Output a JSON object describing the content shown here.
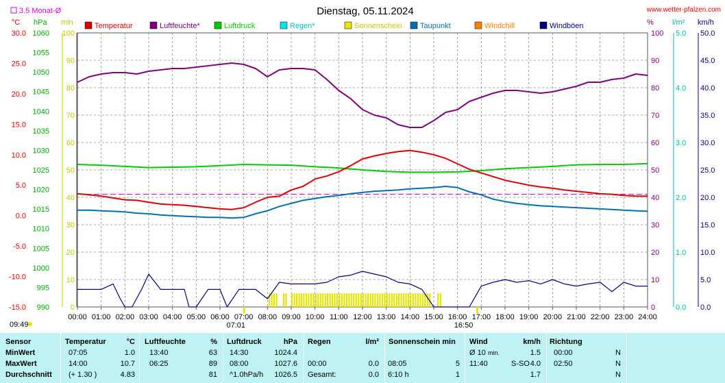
{
  "title": "Dienstag, 05.11.2024",
  "site": "www.wetter-pfalzen.com",
  "monthly_avg_label": "3.5 Monat-Ø",
  "sunrise": "07:01",
  "sunset": "16:50",
  "time_left": "09:49",
  "axes": {
    "temp_unit": "°C",
    "pres_unit": "hPa",
    "sun_unit": "min",
    "hum_unit": "%",
    "rain_unit": "l/m²",
    "wind_unit": "km/h",
    "temp_ticks": [
      "30.0",
      "25.0",
      "20.0",
      "15.0",
      "10.0",
      "5.0",
      "0.0",
      "-5.0",
      "-10.0",
      "-15.0"
    ],
    "pres_ticks": [
      "1060",
      "1055",
      "1050",
      "1045",
      "1040",
      "1035",
      "1030",
      "1025",
      "1020",
      "1015",
      "1010",
      "1005",
      "1000",
      "995",
      "990"
    ],
    "sun_ticks": [
      "100",
      "90",
      "80",
      "70",
      "60",
      "50",
      "40",
      "30",
      "20",
      "10",
      "0"
    ],
    "hum_ticks": [
      "100",
      "90",
      "80",
      "70",
      "60",
      "50",
      "40",
      "30",
      "20",
      "10",
      "0"
    ],
    "rain_ticks": [
      "5.0",
      "4.0",
      "3.0",
      "2.0",
      "1.0",
      "0.0"
    ],
    "wind_ticks": [
      "50.0",
      "45.0",
      "40.0",
      "35.0",
      "30.0",
      "25.0",
      "20.0",
      "15.0",
      "10.0",
      "5.0",
      "0.0"
    ],
    "x_ticks": [
      "00:00",
      "01:00",
      "02:00",
      "03:00",
      "04:00",
      "05:00",
      "06:00",
      "07:00",
      "08:00",
      "09:00",
      "10:00",
      "11:00",
      "12:00",
      "13:00",
      "14:00",
      "15:00",
      "16:00",
      "17:00",
      "18:00",
      "19:00",
      "20:00",
      "21:00",
      "22:00",
      "23:00",
      "24:00"
    ]
  },
  "legend": [
    {
      "label": "Temperatur",
      "color": "#e00000"
    },
    {
      "label": "Luftfeuchte*",
      "color": "#800080"
    },
    {
      "label": "Luftdruck",
      "color": "#00cc00"
    },
    {
      "label": "Regen*",
      "color": "#00e5e5"
    },
    {
      "label": "Sonnenschein",
      "color": "#e5e500"
    },
    {
      "label": "Taupunkt",
      "color": "#0070b0"
    },
    {
      "label": "Windchill",
      "color": "#ff8000"
    },
    {
      "label": "Windböen",
      "color": "#000080"
    }
  ],
  "chart_data": {
    "type": "line",
    "title": "Dienstag, 05.11.2024",
    "x_unit": "hour",
    "xlim": [
      0,
      24
    ],
    "ylim_temp": [
      -15,
      30
    ],
    "ylim_pressure": [
      990,
      1060
    ],
    "ylim_humidity": [
      0,
      100
    ],
    "ylim_rain": [
      0,
      5
    ],
    "ylim_wind": [
      0,
      50
    ],
    "ylim_sun": [
      0,
      100
    ],
    "monthly_avg_temp": 3.5,
    "series": [
      {
        "name": "Temperatur",
        "axis": "temp",
        "color": "#e00000",
        "x": [
          0,
          0.5,
          1,
          1.5,
          2,
          2.5,
          3,
          3.5,
          4,
          4.5,
          5,
          5.5,
          6,
          6.5,
          7,
          7.5,
          8,
          8.5,
          9,
          9.5,
          10,
          10.5,
          11,
          11.5,
          12,
          12.5,
          13,
          13.5,
          14,
          14.5,
          15,
          15.5,
          16,
          16.5,
          17,
          17.5,
          18,
          18.5,
          19,
          19.5,
          20,
          20.5,
          21,
          21.5,
          22,
          22.5,
          23,
          23.5,
          24
        ],
        "y": [
          3.6,
          3.4,
          3.2,
          2.9,
          2.6,
          2.5,
          2.2,
          1.9,
          1.8,
          1.7,
          1.5,
          1.3,
          1.1,
          1.0,
          1.3,
          2.2,
          3.0,
          3.2,
          4.2,
          4.8,
          6.0,
          6.5,
          7.2,
          8.2,
          9.3,
          9.8,
          10.2,
          10.5,
          10.7,
          10.4,
          10.0,
          9.4,
          8.5,
          7.6,
          7.0,
          6.4,
          5.8,
          5.4,
          5.0,
          4.7,
          4.5,
          4.2,
          4.0,
          3.8,
          3.6,
          3.5,
          3.3,
          3.2,
          3.2
        ]
      },
      {
        "name": "Luftfeuchte*",
        "axis": "humidity",
        "color": "#800080",
        "x": [
          0,
          0.5,
          1,
          1.5,
          2,
          2.5,
          3,
          3.5,
          4,
          4.5,
          5,
          5.5,
          6,
          6.5,
          7,
          7.5,
          8,
          8.5,
          9,
          9.5,
          10,
          10.5,
          11,
          11.5,
          12,
          12.5,
          13,
          13.5,
          14,
          14.5,
          15,
          15.5,
          16,
          16.5,
          17,
          17.5,
          18,
          18.5,
          19,
          19.5,
          20,
          20.5,
          21,
          21.5,
          22,
          22.5,
          23,
          23.5,
          24
        ],
        "y": [
          82,
          84,
          85,
          85.5,
          85.5,
          85,
          86,
          86.5,
          87,
          87,
          87.5,
          88,
          88.5,
          89,
          88.5,
          87,
          84,
          86.5,
          87,
          87,
          86.5,
          83,
          79,
          76,
          72,
          70,
          69,
          66.5,
          65.5,
          65.5,
          68,
          71,
          72,
          75,
          76.5,
          78,
          79,
          79,
          78.5,
          78,
          78.5,
          79.5,
          80.5,
          82,
          82,
          83,
          83.5,
          85,
          84.5
        ]
      },
      {
        "name": "Luftdruck",
        "axis": "pressure",
        "color": "#00cc00",
        "x": [
          0,
          1,
          2,
          3,
          4,
          5,
          6,
          7,
          8,
          9,
          10,
          11,
          12,
          13,
          14,
          15,
          16,
          17,
          18,
          19,
          20,
          21,
          22,
          23,
          24
        ],
        "y": [
          1026.4,
          1026.2,
          1025.9,
          1025.6,
          1025.7,
          1025.8,
          1026.1,
          1026.4,
          1026.3,
          1026.2,
          1025.8,
          1025.5,
          1025.0,
          1024.6,
          1024.4,
          1024.4,
          1024.5,
          1024.8,
          1025.3,
          1025.6,
          1025.9,
          1026.3,
          1026.4,
          1026.4,
          1026.6
        ]
      },
      {
        "name": "Taupunkt",
        "axis": "temp",
        "color": "#0070b0",
        "x": [
          0,
          0.5,
          1,
          1.5,
          2,
          2.5,
          3,
          3.5,
          4,
          4.5,
          5,
          5.5,
          6,
          6.5,
          7,
          7.5,
          8,
          8.5,
          9,
          9.5,
          10,
          10.5,
          11,
          11.5,
          12,
          12.5,
          13,
          13.5,
          14,
          14.5,
          15,
          15.5,
          16,
          16.5,
          17,
          17.5,
          18,
          18.5,
          19,
          19.5,
          20,
          20.5,
          21,
          21.5,
          22,
          22.5,
          23,
          23.5,
          24
        ],
        "y": [
          0.9,
          0.9,
          0.8,
          0.7,
          0.6,
          0.4,
          0.3,
          0.1,
          0.0,
          -0.1,
          -0.2,
          -0.3,
          -0.3,
          -0.4,
          -0.3,
          0.3,
          0.8,
          1.5,
          2.0,
          2.5,
          2.8,
          3.1,
          3.3,
          3.6,
          3.8,
          4.0,
          4.1,
          4.2,
          4.4,
          4.5,
          4.6,
          4.8,
          4.6,
          3.9,
          3.4,
          2.7,
          2.3,
          2.0,
          1.8,
          1.6,
          1.5,
          1.4,
          1.3,
          1.2,
          1.1,
          1.0,
          0.9,
          0.8,
          0.7
        ]
      },
      {
        "name": "Windböen",
        "axis": "wind",
        "color": "#000080",
        "x": [
          0,
          1,
          1.5,
          1.8,
          2,
          2.3,
          2.7,
          3,
          3.5,
          4,
          4.5,
          4.7,
          5,
          5.5,
          6,
          6.3,
          6.8,
          7,
          7.5,
          8,
          8.5,
          9,
          9.5,
          10,
          10.5,
          11,
          11.5,
          12,
          12.5,
          13,
          13.5,
          14,
          14.5,
          15,
          15.5,
          16,
          16.5,
          17,
          17.5,
          18,
          18.5,
          19,
          19.5,
          20,
          20.5,
          21,
          21.5,
          22,
          22.5,
          23,
          23.5,
          24
        ],
        "y": [
          3.2,
          3.2,
          4.2,
          1.5,
          0,
          0,
          3.2,
          6.0,
          3.2,
          3.2,
          3.2,
          0,
          0,
          3.2,
          3.2,
          0,
          3.2,
          3.2,
          3.2,
          1.5,
          4.5,
          4.2,
          4.2,
          4.2,
          4.5,
          5.5,
          5.8,
          6.5,
          6.0,
          5.5,
          4.5,
          4.2,
          3.2,
          0,
          0,
          0,
          0,
          3.8,
          4.5,
          5.0,
          4.5,
          4.8,
          4.2,
          5.0,
          4.2,
          3.8,
          4.2,
          4.5,
          2.8,
          4.5,
          3.8,
          3.8
        ]
      },
      {
        "name": "Sonnenschein",
        "axis": "sun",
        "color": "#e5e500",
        "x": [
          8.05,
          8.25,
          8.45,
          8.65,
          8.85,
          9.0,
          9.5,
          10.0,
          10.5,
          11.0,
          11.5,
          12.0,
          12.5,
          13.0,
          13.5,
          14.0,
          14.5,
          14.9,
          15.15,
          15.3
        ],
        "y": [
          5,
          5,
          0,
          5,
          0,
          5,
          5,
          5,
          5,
          5,
          5,
          5,
          5,
          5,
          5,
          5,
          5,
          0,
          5,
          5
        ]
      }
    ]
  },
  "stats": {
    "headers": {
      "sensor": "Sensor",
      "temp": "Temperatur",
      "temp_unit": "°C",
      "hum": "Luftfeuchte",
      "hum_unit": "%",
      "pres": "Luftdruck",
      "pres_unit": "hPa",
      "rain": "Regen",
      "rain_unit": "l/m²",
      "sun": "Sonnenschein min",
      "wind": "Wind",
      "wind_unit": "km/h",
      "dir": "Richtung"
    },
    "rows": [
      {
        "label": "MinWert",
        "temp_time": "07:05",
        "temp_val": "1.0",
        "hum_time": "13:40",
        "hum_val": "63",
        "pres_time": "14:30",
        "pres_val": "1024.4",
        "rain_time": "",
        "rain_val": "",
        "sun_time": "",
        "sun_val": "",
        "wind_time": "Ø 10",
        "wind_sub": "min.",
        "wind_dir": "",
        "wind_val": "1.5",
        "dir_time": "00:00",
        "dir_val": "N"
      },
      {
        "label": "MaxWert",
        "temp_time": "14:00",
        "temp_val": "10.7",
        "hum_time": "06:25",
        "hum_val": "89",
        "pres_time": "08:00",
        "pres_val": "1027.6",
        "rain_time": "00:00",
        "rain_val": "0.0",
        "sun_time": "08:05",
        "sun_val": "5",
        "wind_time": "11:40",
        "wind_sub": "",
        "wind_dir": "S-SO",
        "wind_val": "4.0",
        "dir_time": "02:50",
        "dir_val": "N"
      },
      {
        "label": "Durchschnitt",
        "temp_time": "(+ 1.30 )",
        "temp_val": "4.83",
        "hum_time": "",
        "hum_val": "81",
        "pres_time": "^1.0hPa/h",
        "pres_val": "1026.5",
        "rain_time": "Gesamt:",
        "rain_val": "0.0",
        "sun_time": "6:10 h",
        "sun_val": "1",
        "wind_time": "",
        "wind_sub": "",
        "wind_dir": "",
        "wind_val": "1.7",
        "dir_time": "",
        "dir_val": "N"
      }
    ]
  }
}
